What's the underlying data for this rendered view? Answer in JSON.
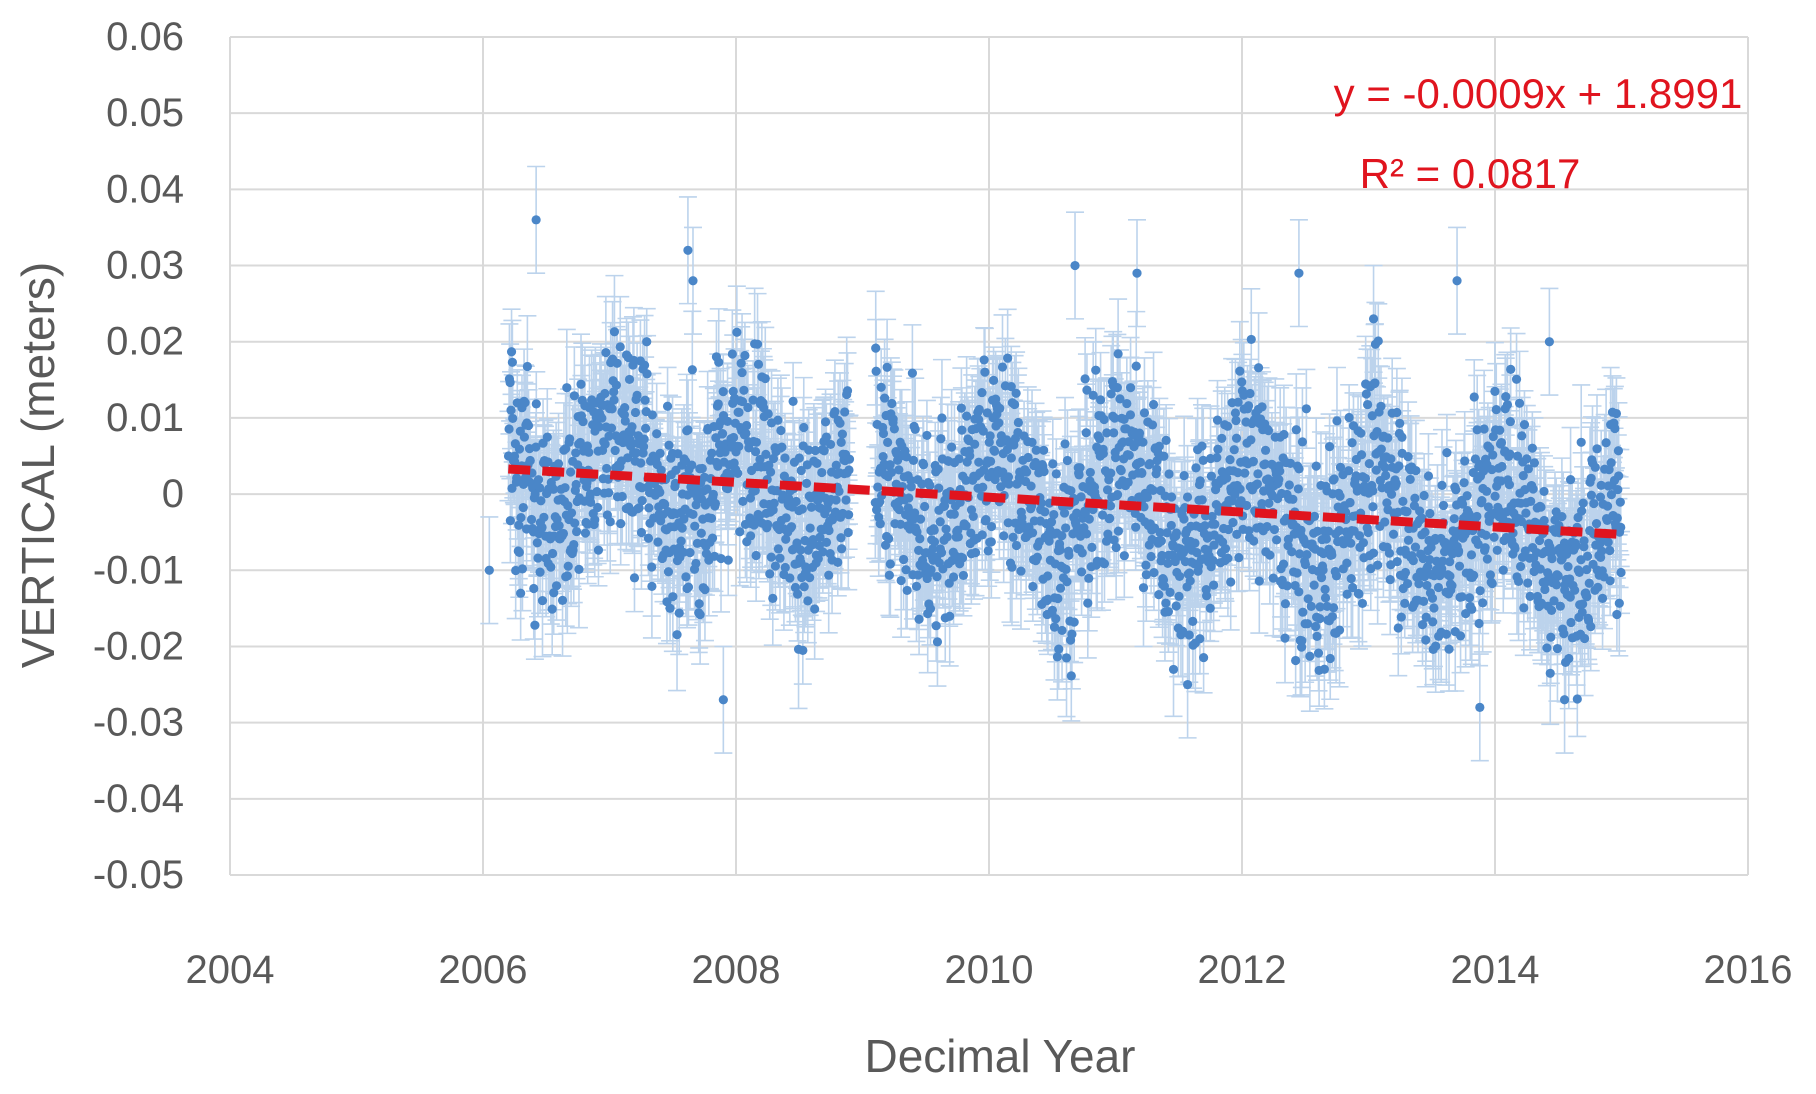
{
  "chart_data": {
    "type": "scatter",
    "title": "",
    "xlabel": "Decimal Year",
    "ylabel": "VERTICAL (meters)",
    "xlim": [
      2004,
      2016
    ],
    "ylim": [
      -0.05,
      0.06
    ],
    "xticks": [
      2004,
      2006,
      2008,
      2010,
      2012,
      2014,
      2016
    ],
    "yticks": [
      0.06,
      0.05,
      0.04,
      0.03,
      0.02,
      0.01,
      0,
      -0.01,
      -0.02,
      -0.03,
      -0.04,
      -0.05
    ],
    "xtick_labels": [
      "2004",
      "2006",
      "2008",
      "2010",
      "2012",
      "2014",
      "2016"
    ],
    "ytick_labels": [
      "0.06",
      "0.05",
      "0.04",
      "0.03",
      "0.02",
      "0.01",
      "0",
      "-0.01",
      "-0.02",
      "-0.03",
      "-0.04",
      "-0.05"
    ],
    "grid": true,
    "legend": "none",
    "colors": {
      "points": "#4a86c8",
      "error_bars": "#bcd3ec",
      "trendline": "#e0141e",
      "grid": "#d9d9d9",
      "text": "#595959"
    },
    "series": [
      {
        "style": "points with vertical error bars, approx. daily observations (dense cloud)",
        "segments": [
          {
            "x_start": 2006.2,
            "x_end": 2008.9,
            "y_center": 0.003,
            "y_spread": 0.012,
            "error_bar_halfwidth": 0.006
          },
          {
            "x_start": 2009.1,
            "x_end": 2015.0,
            "y_center": -0.003,
            "y_spread": 0.012,
            "error_bar_halfwidth": 0.006
          }
        ],
        "notable_points": [
          {
            "x": 2006.42,
            "y": 0.036
          },
          {
            "x": 2007.62,
            "y": 0.032
          },
          {
            "x": 2007.66,
            "y": 0.028
          },
          {
            "x": 2010.68,
            "y": 0.03
          },
          {
            "x": 2011.17,
            "y": 0.029
          },
          {
            "x": 2012.45,
            "y": 0.029
          },
          {
            "x": 2013.04,
            "y": 0.023
          },
          {
            "x": 2013.7,
            "y": 0.028
          },
          {
            "x": 2014.43,
            "y": 0.02
          },
          {
            "x": 2007.9,
            "y": -0.027
          },
          {
            "x": 2011.57,
            "y": -0.025
          },
          {
            "x": 2013.88,
            "y": -0.028
          },
          {
            "x": 2014.55,
            "y": -0.027
          },
          {
            "x": 2006.05,
            "y": -0.01
          }
        ]
      }
    ],
    "trendline": {
      "type": "linear",
      "style": "dashed",
      "x_start": 2006.2,
      "x_end": 2015.0,
      "y_start": 0.0033,
      "y_end": -0.0053,
      "equation": "y = -0.0009x + 1.8991",
      "r2_label": "R² = 0.0817"
    }
  }
}
